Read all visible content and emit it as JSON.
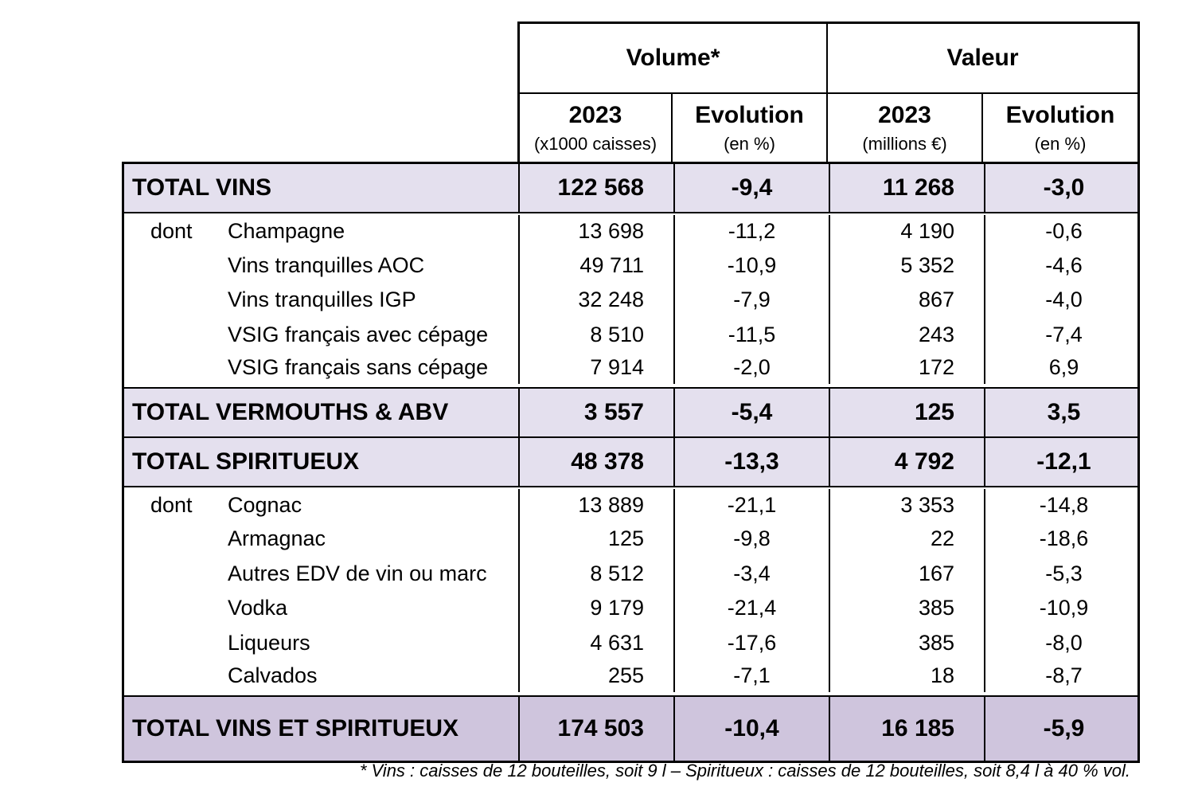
{
  "header": {
    "volume_title": "Volume*",
    "valeur_title": "Valeur",
    "col_2023_vol": "2023",
    "col_2023_vol_unit": "(x1000 caisses)",
    "col_evo_vol": "Evolution",
    "col_evo_vol_unit": "(en %)",
    "col_2023_val": "2023",
    "col_2023_val_unit": "(millions €)",
    "col_evo_val": "Evolution",
    "col_evo_val_unit": "(en %)"
  },
  "total_vins": {
    "label": "TOTAL VINS",
    "vol": "122 568",
    "vol_evo": "-9,4",
    "val": "11 268",
    "val_evo": "-3,0"
  },
  "vins_dont_label": "dont",
  "vins_items": [
    {
      "label": "Champagne",
      "vol": "13 698",
      "vol_evo": "-11,2",
      "val": "4 190",
      "val_evo": "-0,6"
    },
    {
      "label": "Vins tranquilles AOC",
      "vol": "49 711",
      "vol_evo": "-10,9",
      "val": "5 352",
      "val_evo": "-4,6"
    },
    {
      "label": "Vins tranquilles IGP",
      "vol": "32 248",
      "vol_evo": "-7,9",
      "val": "867",
      "val_evo": "-4,0"
    },
    {
      "label": "VSIG français avec cépage",
      "vol": "8 510",
      "vol_evo": "-11,5",
      "val": "243",
      "val_evo": "-7,4"
    },
    {
      "label": "VSIG français sans cépage",
      "vol": "7 914",
      "vol_evo": "-2,0",
      "val": "172",
      "val_evo": "6,9"
    }
  ],
  "total_vermouths": {
    "label": "TOTAL VERMOUTHS & ABV",
    "vol": "3 557",
    "vol_evo": "-5,4",
    "val": "125",
    "val_evo": "3,5"
  },
  "total_spiritueux": {
    "label": "TOTAL SPIRITUEUX",
    "vol": "48 378",
    "vol_evo": "-13,3",
    "val": "4 792",
    "val_evo": "-12,1"
  },
  "spiritueux_dont_label": "dont",
  "spiritueux_items": [
    {
      "label": "Cognac",
      "vol": "13 889",
      "vol_evo": "-21,1",
      "val": "3 353",
      "val_evo": "-14,8"
    },
    {
      "label": "Armagnac",
      "vol": "125",
      "vol_evo": "-9,8",
      "val": "22",
      "val_evo": "-18,6"
    },
    {
      "label": "Autres EDV de vin ou marc",
      "vol": "8 512",
      "vol_evo": "-3,4",
      "val": "167",
      "val_evo": "-5,3"
    },
    {
      "label": "Vodka",
      "vol": "9 179",
      "vol_evo": "-21,4",
      "val": "385",
      "val_evo": "-10,9"
    },
    {
      "label": "Liqueurs",
      "vol": "4 631",
      "vol_evo": "-17,6",
      "val": "385",
      "val_evo": "-8,0"
    },
    {
      "label": "Calvados",
      "vol": "255",
      "vol_evo": "-7,1",
      "val": "18",
      "val_evo": "-8,7"
    }
  ],
  "total_general": {
    "label": "TOTAL VINS ET SPIRITUEUX",
    "vol": "174 503",
    "vol_evo": "-10,4",
    "val": "16 185",
    "val_evo": "-5,9"
  },
  "footnote": "* Vins : caisses de 12 bouteilles, soit 9 l – Spiritueux : caisses de 12 bouteilles, soit 8,4 l à 40 % vol.",
  "colors": {
    "total_bg": "#e4e0ee",
    "grand_total_bg": "#cfc5dd",
    "border": "#000000"
  }
}
